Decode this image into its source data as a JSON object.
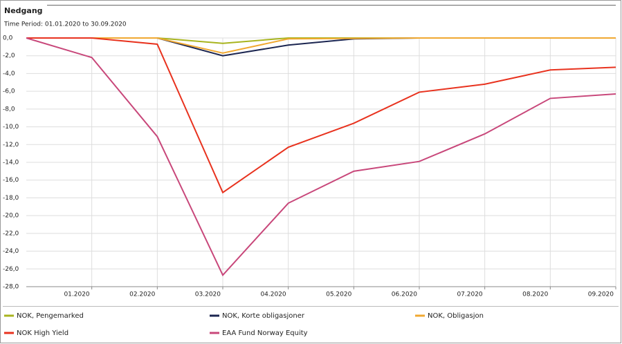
{
  "chart_data": {
    "type": "line",
    "title": "Nedgang",
    "subtitle": "Time Period: 01.01.2020 to 30.09.2020",
    "categories": [
      null,
      "01.2020",
      "02.2020",
      "03.2020",
      "04.2020",
      "05.2020",
      "06.2020",
      "07.2020",
      "08.2020",
      "09.2020"
    ],
    "series": [
      {
        "name": "NOK, Pengemarked",
        "color": "#a8b41e",
        "values": [
          0,
          0,
          0,
          -0.6,
          0,
          0,
          0,
          0,
          0,
          0
        ]
      },
      {
        "name": "NOK, Korte obligasjoner",
        "color": "#1b2550",
        "values": [
          0,
          0,
          0,
          -2.0,
          -0.8,
          -0.1,
          0,
          0,
          0,
          0
        ]
      },
      {
        "name": "NOK, Obligasjon",
        "color": "#f0a830",
        "values": [
          0,
          0,
          0,
          -1.7,
          -0.1,
          -0.05,
          0,
          0,
          0,
          0
        ]
      },
      {
        "name": "NOK High Yield",
        "color": "#e8321e",
        "values": [
          0,
          0,
          -0.7,
          -17.4,
          -12.3,
          -9.6,
          -6.1,
          -5.2,
          -3.6,
          -3.3
        ]
      },
      {
        "name": "EAA Fund Norway Equity",
        "color": "#c8477a",
        "values": [
          0,
          -2.2,
          -11.1,
          -26.7,
          -18.6,
          -15.0,
          -13.9,
          -10.8,
          -6.8,
          -6.3
        ]
      }
    ],
    "ylim": [
      -28,
      0
    ],
    "yticks": [
      {
        "value": 0,
        "label": "0,0"
      },
      {
        "value": -2,
        "label": "-2,0"
      },
      {
        "value": -4,
        "label": "-4,0"
      },
      {
        "value": -6,
        "label": "-6,0"
      },
      {
        "value": -8,
        "label": "-8,0"
      },
      {
        "value": -10,
        "label": "-10,0"
      },
      {
        "value": -12,
        "label": "-12,0"
      },
      {
        "value": -14,
        "label": "-14,0"
      },
      {
        "value": -16,
        "label": "-16,0"
      },
      {
        "value": -18,
        "label": "-18,0"
      },
      {
        "value": -20,
        "label": "-20,0"
      },
      {
        "value": -22,
        "label": "-22,0"
      },
      {
        "value": -24,
        "label": "-24,0"
      },
      {
        "value": -26,
        "label": "-26,0"
      },
      {
        "value": -28,
        "label": "-28,0"
      }
    ],
    "grid": true
  }
}
